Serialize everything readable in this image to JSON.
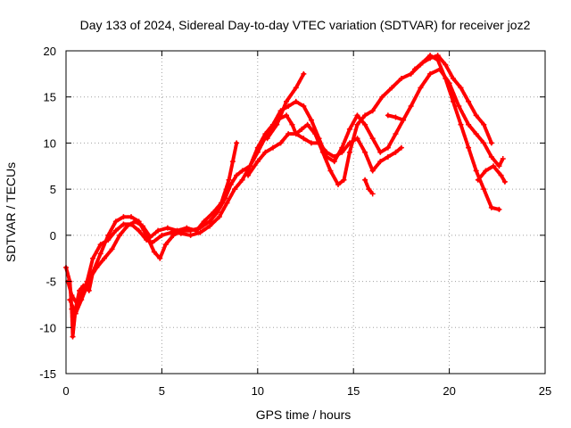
{
  "chart_data": {
    "type": "scatter",
    "title": "Day 133 of 2024, Sidereal Day-to-day VTEC variation (SDTVAR) for receiver joz2",
    "xlabel": "GPS time / hours",
    "ylabel": "SDTVAR / TECUs",
    "xlim": [
      0,
      25
    ],
    "ylim": [
      -15,
      20
    ],
    "xticks": [
      0,
      5,
      10,
      15,
      20,
      25
    ],
    "yticks": [
      -15,
      -10,
      -5,
      0,
      5,
      10,
      15,
      20
    ],
    "grid": true,
    "marker": "+",
    "color": "#ff0000",
    "series": [
      {
        "points": [
          [
            0.0,
            -3.5
          ],
          [
            0.2,
            -5
          ],
          [
            0.3,
            -8
          ],
          [
            0.35,
            -11
          ],
          [
            0.5,
            -8
          ],
          [
            0.7,
            -6
          ],
          [
            0.9,
            -5.5
          ],
          [
            1.2,
            -6
          ],
          [
            1.4,
            -4
          ],
          [
            1.8,
            -2
          ],
          [
            2.2,
            0
          ],
          [
            2.6,
            1.5
          ],
          [
            3.0,
            2
          ],
          [
            3.4,
            2
          ],
          [
            3.8,
            1.5
          ],
          [
            4.2,
            0
          ],
          [
            4.6,
            -1.8
          ],
          [
            4.9,
            -2.5
          ],
          [
            5.2,
            -1
          ],
          [
            5.6,
            0
          ],
          [
            6.0,
            0.5
          ],
          [
            6.5,
            0.5
          ],
          [
            7.0,
            0.8
          ],
          [
            7.5,
            1.5
          ],
          [
            7.9,
            2.5
          ],
          [
            8.3,
            4
          ],
          [
            8.6,
            5.5
          ],
          [
            8.9,
            6.5
          ],
          [
            9.2,
            7
          ],
          [
            9.6,
            7.5
          ],
          [
            10.0,
            9
          ],
          [
            10.5,
            11
          ],
          [
            11.0,
            12.5
          ],
          [
            11.5,
            13
          ],
          [
            11.8,
            12
          ],
          [
            12.0,
            11
          ],
          [
            12.3,
            11.5
          ],
          [
            12.6,
            12
          ],
          [
            13.0,
            11
          ],
          [
            13.4,
            9
          ],
          [
            13.8,
            7
          ],
          [
            14.2,
            5.5
          ],
          [
            14.5,
            6
          ],
          [
            14.8,
            9
          ],
          [
            15.2,
            12
          ],
          [
            15.6,
            13
          ],
          [
            16.0,
            13.5
          ],
          [
            16.5,
            15
          ],
          [
            17.0,
            16
          ],
          [
            17.5,
            17
          ],
          [
            18.0,
            17.5
          ],
          [
            18.5,
            18.5
          ],
          [
            19.0,
            19.5
          ],
          [
            19.4,
            19
          ],
          [
            19.8,
            17
          ],
          [
            20.2,
            14.5
          ],
          [
            20.6,
            12
          ],
          [
            21.0,
            9.5
          ],
          [
            21.4,
            7
          ],
          [
            21.8,
            5
          ],
          [
            22.2,
            3
          ],
          [
            22.6,
            2.8
          ]
        ]
      },
      {
        "points": [
          [
            0.1,
            -5
          ],
          [
            0.3,
            -6.5
          ],
          [
            0.6,
            -7.5
          ],
          [
            0.9,
            -6
          ],
          [
            1.1,
            -5
          ],
          [
            1.4,
            -2.5
          ],
          [
            1.8,
            -1
          ],
          [
            2.2,
            -0.5
          ],
          [
            2.6,
            0.5
          ],
          [
            3.0,
            1.2
          ],
          [
            3.4,
            1.2
          ],
          [
            3.8,
            0.5
          ],
          [
            4.2,
            -0.5
          ],
          [
            4.5,
            -0.8
          ],
          [
            5.0,
            0
          ],
          [
            5.5,
            0.3
          ],
          [
            6.0,
            0.2
          ],
          [
            6.5,
            0
          ],
          [
            7.0,
            0.3
          ],
          [
            7.5,
            1
          ],
          [
            8.0,
            2
          ],
          [
            8.4,
            3.5
          ],
          [
            8.8,
            5
          ],
          [
            9.2,
            6
          ],
          [
            9.6,
            7.5
          ],
          [
            10.0,
            9.5
          ],
          [
            10.4,
            11
          ],
          [
            10.8,
            12
          ],
          [
            11.2,
            13.5
          ],
          [
            11.6,
            14
          ],
          [
            12.0,
            14.5
          ],
          [
            12.4,
            14
          ],
          [
            12.8,
            12.5
          ],
          [
            13.2,
            10.5
          ],
          [
            13.6,
            8.5
          ],
          [
            14.0,
            8
          ],
          [
            14.4,
            9.5
          ],
          [
            14.8,
            11.5
          ],
          [
            15.2,
            13
          ],
          [
            15.6,
            12
          ],
          [
            16.0,
            10.5
          ],
          [
            16.4,
            9
          ],
          [
            16.8,
            9.5
          ],
          [
            17.2,
            11
          ],
          [
            17.6,
            12.5
          ],
          [
            18.0,
            14
          ],
          [
            18.5,
            16
          ],
          [
            19.0,
            17.5
          ],
          [
            19.5,
            18
          ],
          [
            20.0,
            16.5
          ],
          [
            20.5,
            14
          ],
          [
            21.0,
            12
          ],
          [
            21.4,
            11
          ],
          [
            21.8,
            10
          ],
          [
            22.2,
            8.5
          ],
          [
            22.6,
            7.5
          ],
          [
            22.8,
            8.3
          ]
        ]
      },
      {
        "points": [
          [
            0.2,
            -7
          ],
          [
            0.5,
            -8.5
          ],
          [
            0.8,
            -7
          ],
          [
            1.0,
            -6
          ],
          [
            1.3,
            -4.5
          ],
          [
            1.6,
            -3.5
          ],
          [
            2.0,
            -2.5
          ],
          [
            2.4,
            -1.5
          ],
          [
            2.8,
            0
          ],
          [
            3.2,
            1
          ],
          [
            3.6,
            1.5
          ],
          [
            4.0,
            1
          ],
          [
            4.4,
            -0.2
          ],
          [
            4.8,
            0.5
          ],
          [
            5.3,
            0.8
          ],
          [
            5.8,
            0.5
          ],
          [
            6.3,
            0.8
          ],
          [
            6.8,
            0.5
          ],
          [
            7.2,
            1.5
          ],
          [
            7.7,
            2.5
          ],
          [
            8.1,
            3.5
          ],
          [
            8.5,
            6
          ],
          [
            8.7,
            8
          ],
          [
            8.9,
            10
          ]
        ]
      },
      {
        "points": [
          [
            9.5,
            6.5
          ],
          [
            10.0,
            8
          ],
          [
            10.4,
            9
          ],
          [
            10.8,
            9.5
          ],
          [
            11.2,
            10
          ],
          [
            11.6,
            11
          ],
          [
            12.0,
            11
          ],
          [
            12.4,
            10.5
          ],
          [
            12.8,
            10
          ],
          [
            13.2,
            10
          ],
          [
            13.6,
            9
          ],
          [
            14.0,
            8.5
          ],
          [
            14.4,
            9
          ],
          [
            14.8,
            10
          ],
          [
            15.2,
            10.5
          ],
          [
            15.6,
            9
          ],
          [
            16.0,
            7
          ],
          [
            16.4,
            8
          ],
          [
            16.8,
            8.5
          ],
          [
            17.2,
            9
          ],
          [
            17.5,
            9.5
          ]
        ]
      },
      {
        "points": [
          [
            10.5,
            10.5
          ],
          [
            11.0,
            12
          ],
          [
            11.5,
            14.5
          ],
          [
            12.0,
            16
          ],
          [
            12.4,
            17.5
          ]
        ]
      },
      {
        "points": [
          [
            15.6,
            6
          ],
          [
            15.8,
            5
          ],
          [
            16.0,
            4.5
          ]
        ]
      },
      {
        "points": [
          [
            16.8,
            13
          ],
          [
            17.2,
            12.8
          ],
          [
            17.6,
            12.5
          ]
        ]
      },
      {
        "points": [
          [
            21.5,
            6
          ],
          [
            21.9,
            7
          ],
          [
            22.3,
            7.5
          ],
          [
            22.7,
            6.5
          ],
          [
            22.9,
            5.8
          ]
        ]
      },
      {
        "points": [
          [
            18.2,
            18
          ],
          [
            18.6,
            18.7
          ],
          [
            19.0,
            19.2
          ],
          [
            19.4,
            19.5
          ],
          [
            19.8,
            18.5
          ],
          [
            20.2,
            17
          ],
          [
            20.6,
            16
          ],
          [
            21.0,
            14.5
          ],
          [
            21.4,
            13
          ],
          [
            21.8,
            12
          ],
          [
            22.2,
            10
          ]
        ]
      }
    ]
  }
}
